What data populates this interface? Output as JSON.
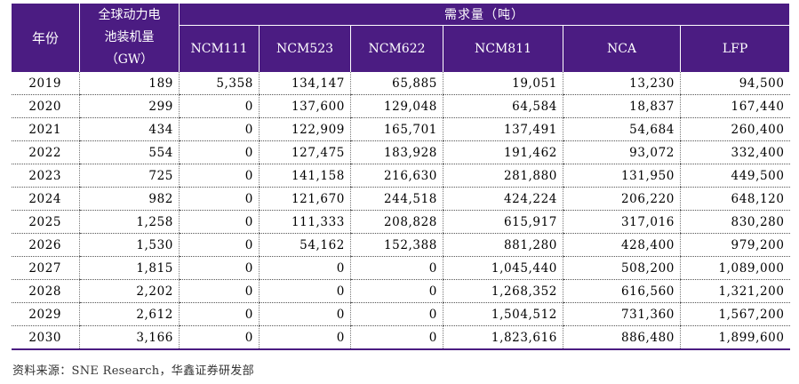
{
  "table": {
    "headers": {
      "year": "年份",
      "capacity_line1": "全球动力电",
      "capacity_line2": "池装机量",
      "capacity_line3": "（GW）",
      "demand": "需求量（吨）",
      "materials": [
        "NCM111",
        "NCM523",
        "NCM622",
        "NCM811",
        "NCA",
        "LFP"
      ]
    },
    "rows": [
      {
        "year": "2019",
        "capacity": "189",
        "ncm111": "5,358",
        "ncm523": "134,147",
        "ncm622": "65,885",
        "ncm811": "19,051",
        "nca": "13,230",
        "lfp": "94,500"
      },
      {
        "year": "2020",
        "capacity": "299",
        "ncm111": "0",
        "ncm523": "137,600",
        "ncm622": "129,048",
        "ncm811": "64,584",
        "nca": "18,837",
        "lfp": "167,440"
      },
      {
        "year": "2021",
        "capacity": "434",
        "ncm111": "0",
        "ncm523": "122,909",
        "ncm622": "165,701",
        "ncm811": "137,491",
        "nca": "54,684",
        "lfp": "260,400"
      },
      {
        "year": "2022",
        "capacity": "554",
        "ncm111": "0",
        "ncm523": "127,475",
        "ncm622": "183,928",
        "ncm811": "191,462",
        "nca": "93,072",
        "lfp": "332,400"
      },
      {
        "year": "2023",
        "capacity": "725",
        "ncm111": "0",
        "ncm523": "141,158",
        "ncm622": "216,630",
        "ncm811": "281,880",
        "nca": "131,950",
        "lfp": "449,500"
      },
      {
        "year": "2024",
        "capacity": "982",
        "ncm111": "0",
        "ncm523": "121,670",
        "ncm622": "244,518",
        "ncm811": "424,224",
        "nca": "206,220",
        "lfp": "648,120"
      },
      {
        "year": "2025",
        "capacity": "1,258",
        "ncm111": "0",
        "ncm523": "111,333",
        "ncm622": "208,828",
        "ncm811": "615,917",
        "nca": "317,016",
        "lfp": "830,280"
      },
      {
        "year": "2026",
        "capacity": "1,530",
        "ncm111": "0",
        "ncm523": "54,162",
        "ncm622": "152,388",
        "ncm811": "881,280",
        "nca": "428,400",
        "lfp": "979,200"
      },
      {
        "year": "2027",
        "capacity": "1,815",
        "ncm111": "0",
        "ncm523": "0",
        "ncm622": "0",
        "ncm811": "1,045,440",
        "nca": "508,200",
        "lfp": "1,089,000"
      },
      {
        "year": "2028",
        "capacity": "2,202",
        "ncm111": "0",
        "ncm523": "0",
        "ncm622": "0",
        "ncm811": "1,268,352",
        "nca": "616,560",
        "lfp": "1,321,200"
      },
      {
        "year": "2029",
        "capacity": "2,612",
        "ncm111": "0",
        "ncm523": "0",
        "ncm622": "0",
        "ncm811": "1,504,512",
        "nca": "731,360",
        "lfp": "1,567,200"
      },
      {
        "year": "2030",
        "capacity": "3,166",
        "ncm111": "0",
        "ncm523": "0",
        "ncm622": "0",
        "ncm811": "1,823,616",
        "nca": "886,480",
        "lfp": "1,899,600"
      }
    ]
  },
  "source": "资料来源：SNE Research，华鑫证券研发部",
  "colors": {
    "header_bg": "#4b1c82",
    "header_text": "#ffffff"
  }
}
